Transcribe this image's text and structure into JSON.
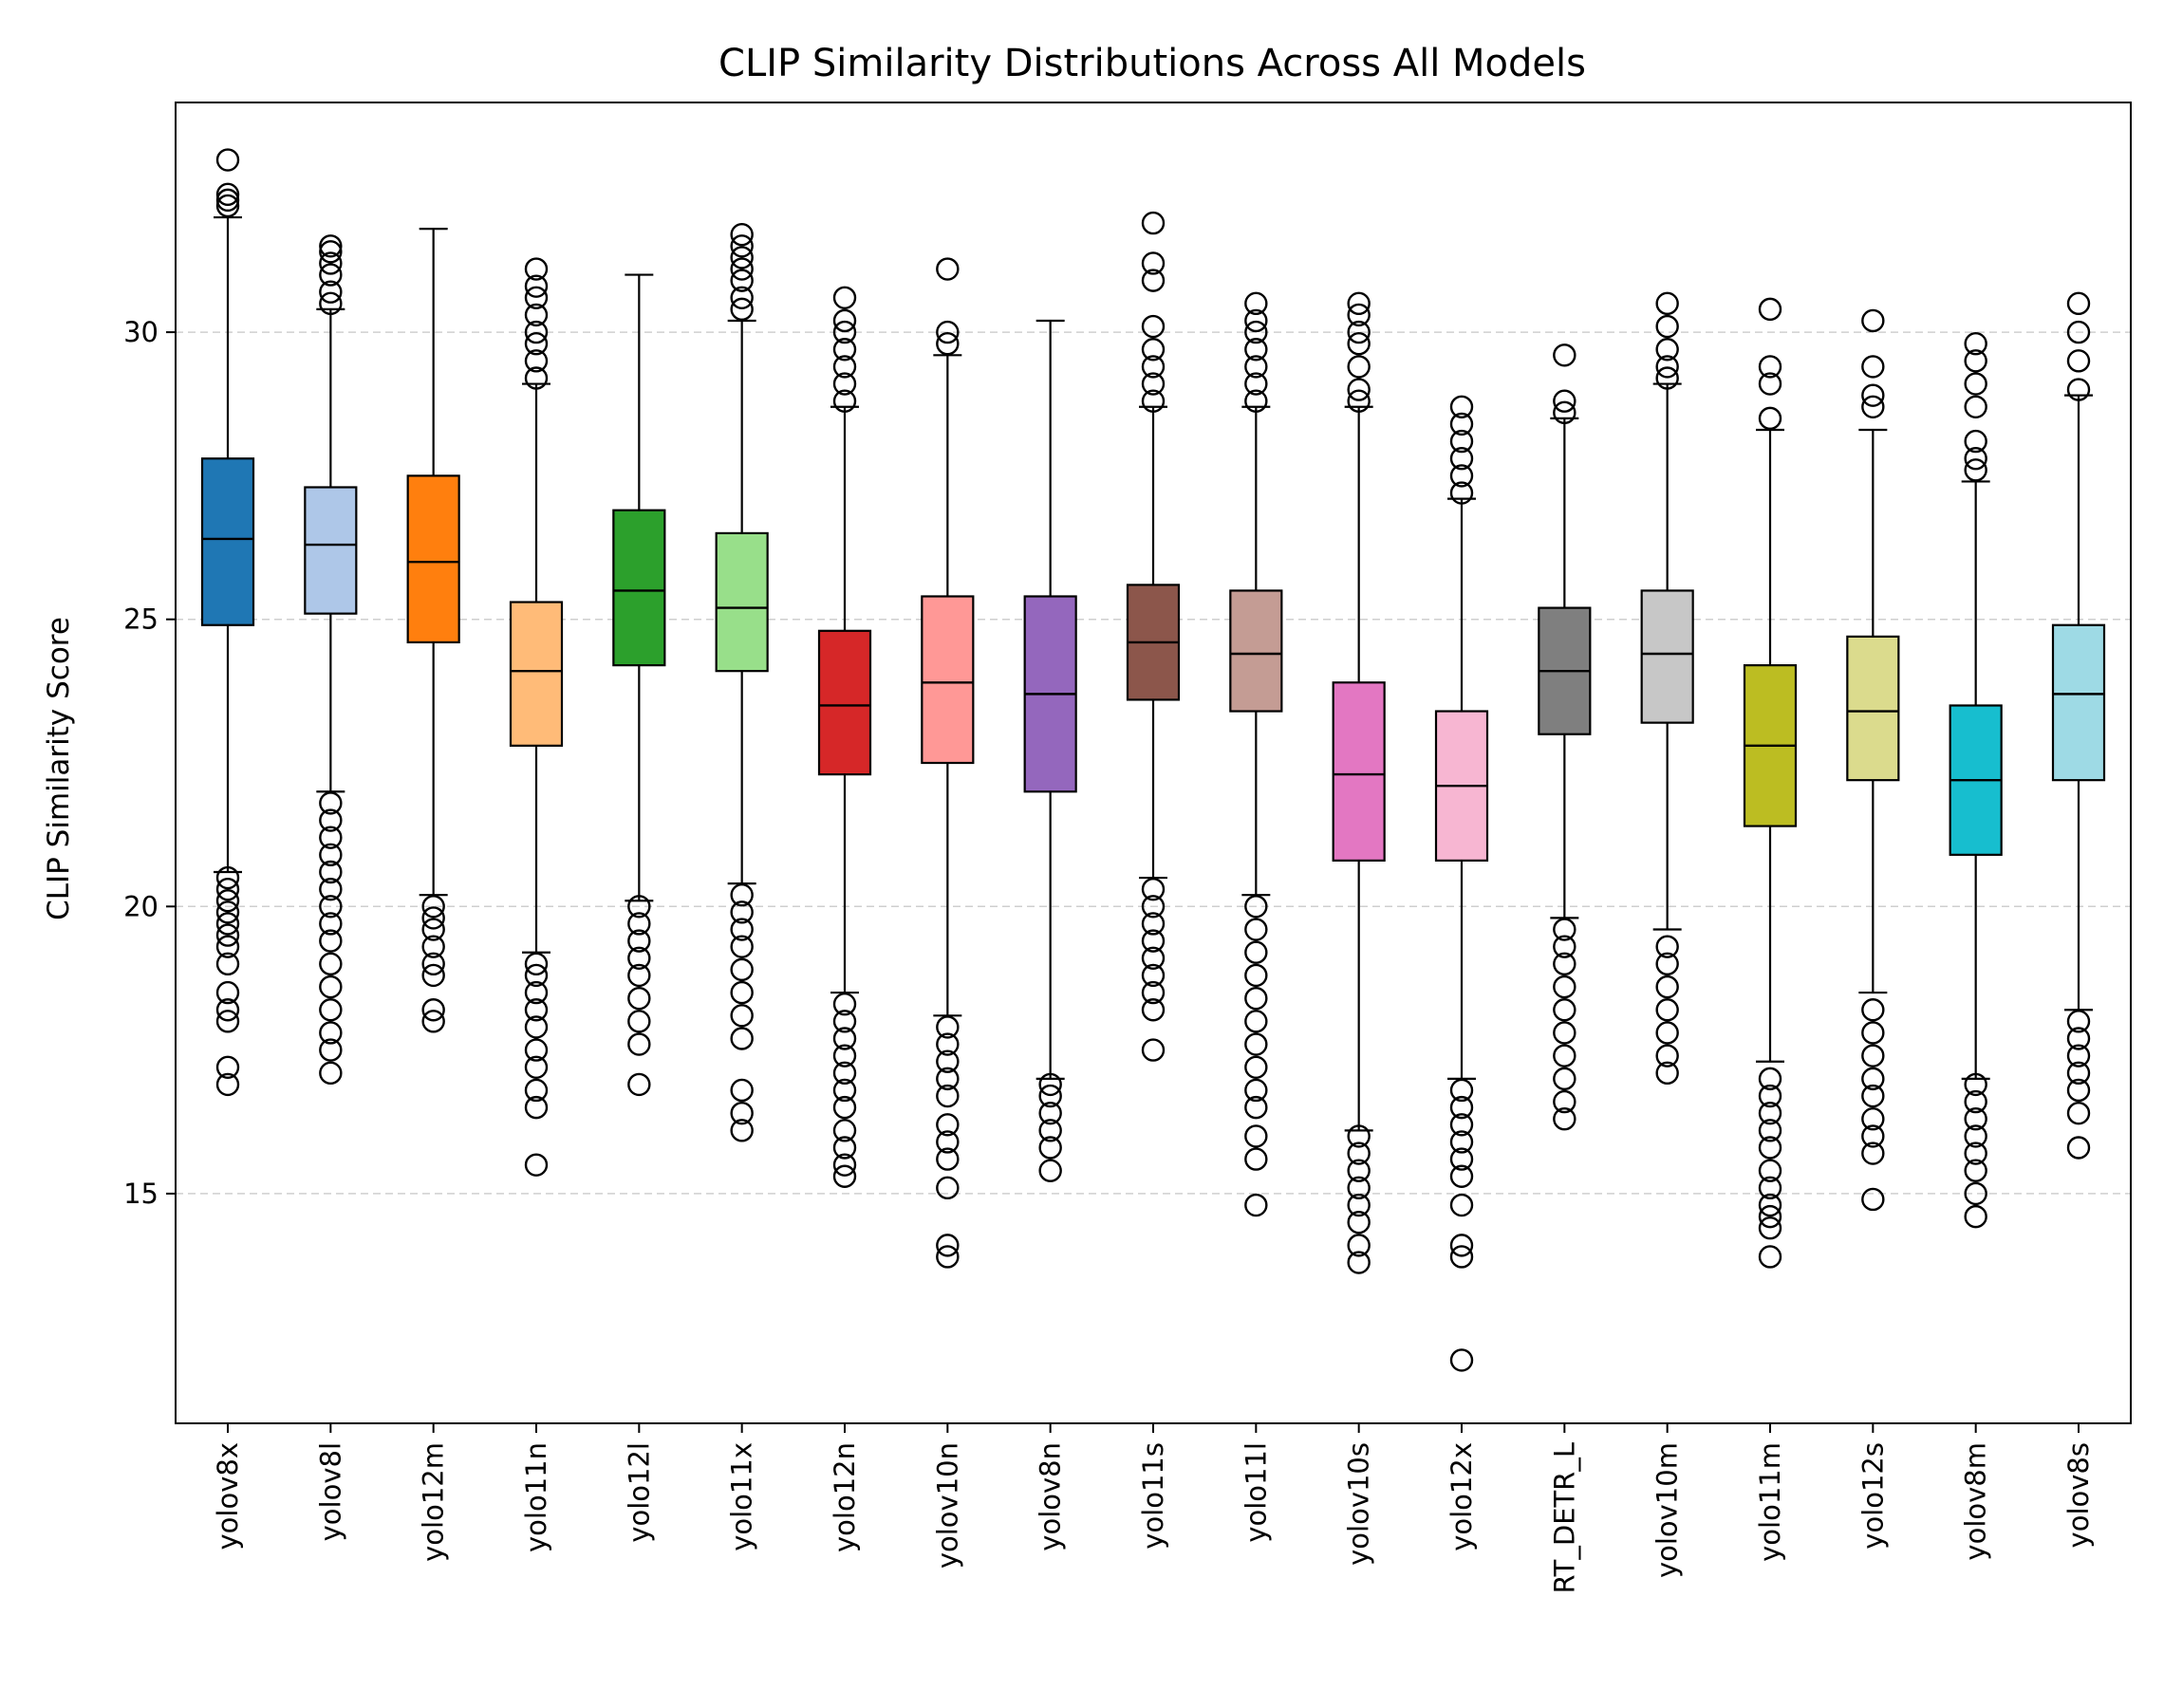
{
  "chart_data": {
    "type": "box",
    "title": "CLIP Similarity Distributions Across All Models",
    "xlabel": "",
    "ylabel": "CLIP Similarity Score",
    "ylim": [
      11.0,
      34.0
    ],
    "yticks": [
      15,
      20,
      25,
      30
    ],
    "grid": "y-dashed",
    "categories": [
      "yolov8x",
      "yolov8l",
      "yolo12m",
      "yolo11n",
      "yolo12l",
      "yolo11x",
      "yolo12n",
      "yolov10n",
      "yolov8n",
      "yolo11s",
      "yolo11l",
      "yolov10s",
      "yolo12x",
      "RT_DETR_L",
      "yolov10m",
      "yolo11m",
      "yolo12s",
      "yolov8m",
      "yolov8s"
    ],
    "colors": [
      "#1f77b4",
      "#aec7e8",
      "#ff7f0e",
      "#ffbb78",
      "#2ca02c",
      "#98df8a",
      "#d62728",
      "#ff9896",
      "#9467bd",
      "#8c564b",
      "#c49c94",
      "#e377c2",
      "#f7b6d2",
      "#7f7f7f",
      "#c7c7c7",
      "#bcbd22",
      "#dbdb8d",
      "#17becf",
      "#9edae5"
    ],
    "boxes": [
      {
        "whislo": 20.6,
        "q1": 24.9,
        "median": 26.4,
        "q3": 27.8,
        "whishi": 32.0,
        "outliers_high": [
          32.2,
          32.3,
          32.4,
          33.0
        ],
        "outliers_low": [
          16.9,
          17.2,
          18.0,
          18.2,
          18.5,
          19.0,
          19.3,
          19.5,
          19.7,
          19.9,
          20.1,
          20.3,
          20.5
        ]
      },
      {
        "whislo": 22.0,
        "q1": 25.1,
        "median": 26.3,
        "q3": 27.3,
        "whishi": 30.4,
        "outliers_high": [
          30.5,
          30.7,
          31.0,
          31.2,
          31.4,
          31.5
        ],
        "outliers_low": [
          17.1,
          17.5,
          17.8,
          18.2,
          18.6,
          19.0,
          19.4,
          19.7,
          20.0,
          20.3,
          20.6,
          20.9,
          21.2,
          21.5,
          21.8
        ]
      },
      {
        "whislo": 20.2,
        "q1": 24.6,
        "median": 26.0,
        "q3": 27.5,
        "whishi": 31.8,
        "outliers_high": [],
        "outliers_low": [
          18.0,
          18.2,
          18.8,
          19.0,
          19.3,
          19.6,
          19.8,
          20.0
        ]
      },
      {
        "whislo": 19.2,
        "q1": 22.8,
        "median": 24.1,
        "q3": 25.3,
        "whishi": 29.1,
        "outliers_high": [
          29.2,
          29.5,
          29.8,
          30.0,
          30.3,
          30.6,
          30.8,
          31.1
        ],
        "outliers_low": [
          15.5,
          16.5,
          16.8,
          17.2,
          17.5,
          17.9,
          18.2,
          18.5,
          18.8,
          19.0
        ]
      },
      {
        "whislo": 20.1,
        "q1": 24.2,
        "median": 25.5,
        "q3": 26.9,
        "whishi": 31.0,
        "outliers_high": [],
        "outliers_low": [
          16.9,
          17.6,
          18.0,
          18.4,
          18.8,
          19.1,
          19.4,
          19.7,
          20.0
        ]
      },
      {
        "whislo": 20.4,
        "q1": 24.1,
        "median": 25.2,
        "q3": 26.5,
        "whishi": 30.2,
        "outliers_high": [
          30.4,
          30.6,
          30.9,
          31.1,
          31.3,
          31.5,
          31.7
        ],
        "outliers_low": [
          16.1,
          16.4,
          16.8,
          17.7,
          18.1,
          18.5,
          18.9,
          19.3,
          19.6,
          19.9,
          20.2
        ]
      },
      {
        "whislo": 18.5,
        "q1": 22.3,
        "median": 23.5,
        "q3": 24.8,
        "whishi": 28.7,
        "outliers_high": [
          28.8,
          29.1,
          29.4,
          29.7,
          30.0,
          30.2,
          30.6
        ],
        "outliers_low": [
          15.3,
          15.5,
          15.8,
          16.1,
          16.5,
          16.8,
          17.1,
          17.4,
          17.7,
          18.0,
          18.3
        ]
      },
      {
        "whislo": 18.1,
        "q1": 22.5,
        "median": 23.9,
        "q3": 25.4,
        "whishi": 29.6,
        "outliers_high": [
          29.8,
          30.0,
          31.1
        ],
        "outliers_low": [
          13.9,
          14.1,
          15.1,
          15.6,
          15.9,
          16.2,
          16.7,
          17.0,
          17.3,
          17.6,
          17.9
        ]
      },
      {
        "whislo": 17.0,
        "q1": 22.0,
        "median": 23.7,
        "q3": 25.4,
        "whishi": 30.2,
        "outliers_high": [],
        "outliers_low": [
          15.4,
          15.8,
          16.1,
          16.4,
          16.7,
          16.9
        ]
      },
      {
        "whislo": 20.5,
        "q1": 23.6,
        "median": 24.6,
        "q3": 25.6,
        "whishi": 28.7,
        "outliers_high": [
          28.8,
          29.1,
          29.4,
          29.7,
          30.1,
          30.9,
          31.2,
          31.9
        ],
        "outliers_low": [
          17.5,
          18.2,
          18.5,
          18.8,
          19.1,
          19.4,
          19.7,
          20.0,
          20.3
        ]
      },
      {
        "whislo": 20.2,
        "q1": 23.4,
        "median": 24.4,
        "q3": 25.5,
        "whishi": 28.7,
        "outliers_high": [
          28.8,
          29.1,
          29.4,
          29.7,
          30.0,
          30.2,
          30.5
        ],
        "outliers_low": [
          14.8,
          15.6,
          16.0,
          16.5,
          16.8,
          17.2,
          17.6,
          18.0,
          18.4,
          18.8,
          19.2,
          19.6,
          20.0
        ]
      },
      {
        "whislo": 16.1,
        "q1": 20.8,
        "median": 22.3,
        "q3": 23.9,
        "whishi": 28.7,
        "outliers_high": [
          28.8,
          29.0,
          29.4,
          29.8,
          30.0,
          30.3,
          30.5
        ],
        "outliers_low": [
          13.8,
          14.1,
          14.5,
          14.8,
          15.1,
          15.4,
          15.7,
          16.0
        ]
      },
      {
        "whislo": 17.0,
        "q1": 20.8,
        "median": 22.1,
        "q3": 23.4,
        "whishi": 27.1,
        "outliers_high": [
          27.2,
          27.5,
          27.8,
          28.1,
          28.4,
          28.7
        ],
        "outliers_low": [
          12.1,
          13.9,
          14.1,
          14.8,
          15.3,
          15.6,
          15.9,
          16.2,
          16.5,
          16.8
        ]
      },
      {
        "whislo": 19.8,
        "q1": 23.0,
        "median": 24.1,
        "q3": 25.2,
        "whishi": 28.5,
        "outliers_high": [
          28.6,
          28.8,
          29.6
        ],
        "outliers_low": [
          16.3,
          16.6,
          17.0,
          17.4,
          17.8,
          18.2,
          18.6,
          19.0,
          19.3,
          19.6
        ]
      },
      {
        "whislo": 19.6,
        "q1": 23.2,
        "median": 24.4,
        "q3": 25.5,
        "whishi": 29.1,
        "outliers_high": [
          29.2,
          29.4,
          29.7,
          30.1,
          30.5
        ],
        "outliers_low": [
          17.1,
          17.4,
          17.8,
          18.2,
          18.6,
          19.0,
          19.3
        ]
      },
      {
        "whislo": 17.3,
        "q1": 21.4,
        "median": 22.8,
        "q3": 24.2,
        "whishi": 28.3,
        "outliers_high": [
          28.5,
          29.1,
          29.4,
          30.4
        ],
        "outliers_low": [
          13.9,
          14.4,
          14.6,
          14.8,
          15.1,
          15.4,
          15.8,
          16.1,
          16.4,
          16.7,
          17.0
        ]
      },
      {
        "whislo": 18.5,
        "q1": 22.2,
        "median": 23.4,
        "q3": 24.7,
        "whishi": 28.3,
        "outliers_high": [
          28.7,
          28.9,
          29.4,
          30.2
        ],
        "outliers_low": [
          14.9,
          15.7,
          16.0,
          16.3,
          16.7,
          17.0,
          17.4,
          17.8,
          18.2
        ]
      },
      {
        "whislo": 17.0,
        "q1": 20.9,
        "median": 22.2,
        "q3": 23.5,
        "whishi": 27.4,
        "outliers_high": [
          27.6,
          27.8,
          28.1,
          28.7,
          29.1,
          29.5,
          29.8
        ],
        "outliers_low": [
          14.6,
          15.0,
          15.4,
          15.7,
          16.0,
          16.3,
          16.6,
          16.9
        ]
      },
      {
        "whislo": 18.2,
        "q1": 22.2,
        "median": 23.7,
        "q3": 24.9,
        "whishi": 28.9,
        "outliers_high": [
          29.0,
          29.5,
          30.0,
          30.5
        ],
        "outliers_low": [
          15.8,
          16.4,
          16.8,
          17.1,
          17.4,
          17.7,
          18.0
        ]
      }
    ]
  }
}
